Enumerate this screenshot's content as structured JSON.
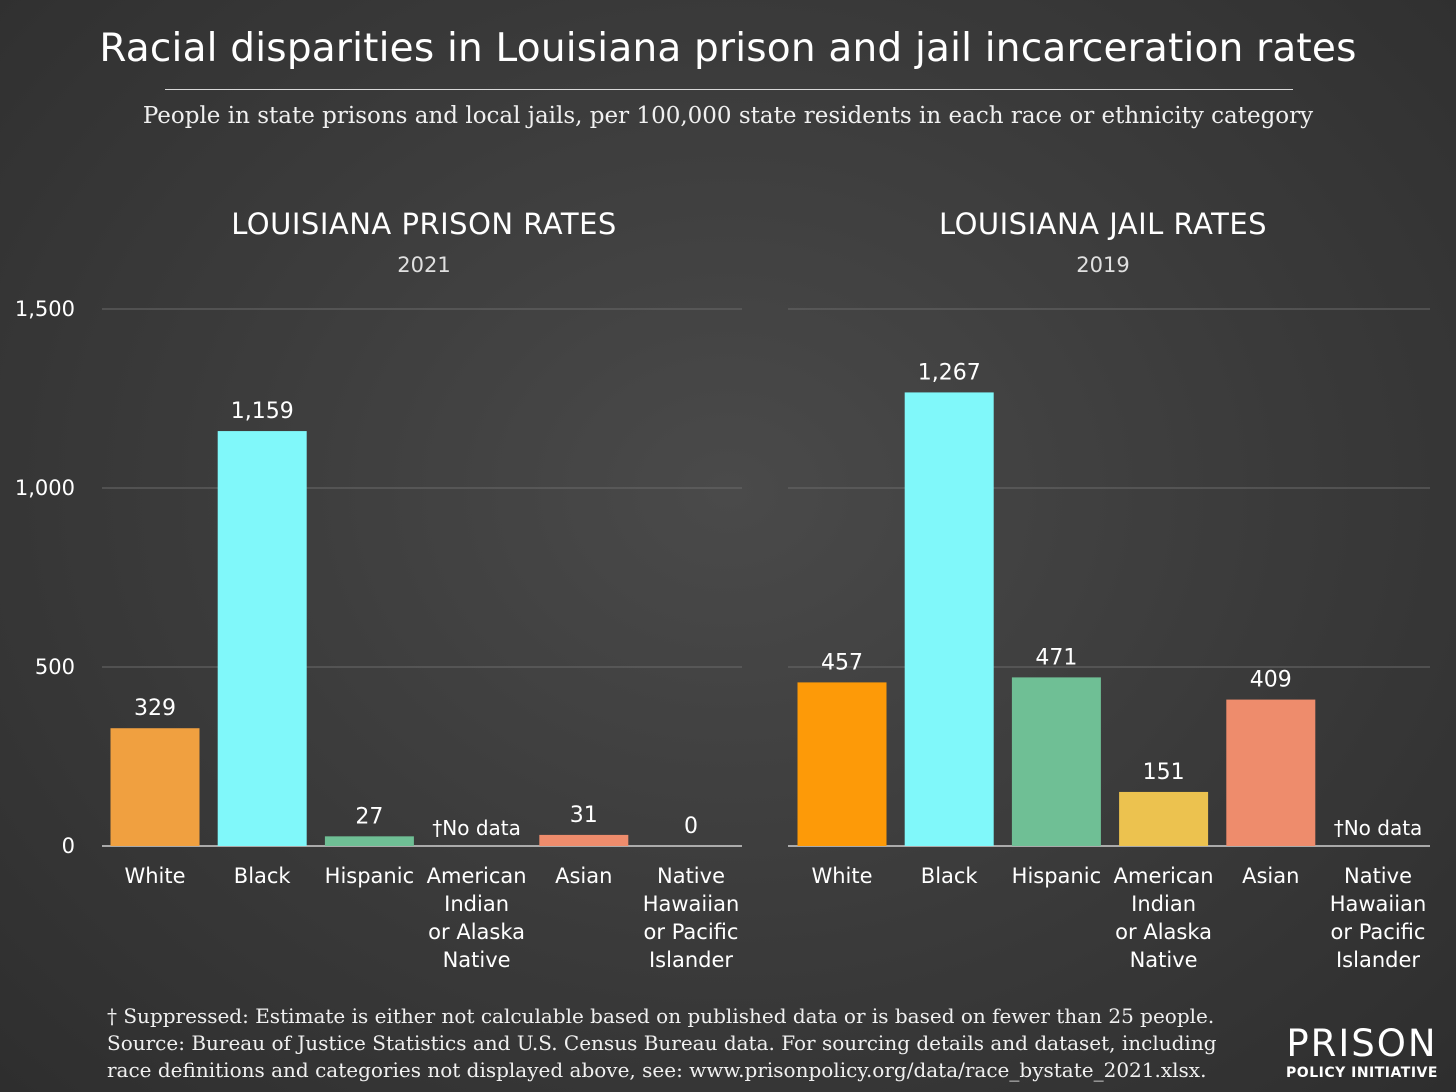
{
  "title": "Racial disparities in Louisiana prison and jail incarceration rates",
  "subtitle": "People in state prisons and local jails, per 100,000 state residents in each race or ethnicity category",
  "footnote": {
    "line1": "† Suppressed: Estimate is either not calculable based on published data or is based on fewer than 25 people.",
    "line2": "Source: Bureau of Justice Statistics and U.S. Census Bureau data. For sourcing details and dataset, including",
    "line3": "race definitions and categories not displayed above, see: www.prisonpolicy.org/data/race_bystate_2021.xlsx."
  },
  "logo": {
    "top": "PRISON",
    "bottom": "POLICY INITIATIVE"
  },
  "colors": {
    "White": "#f0a040",
    "Black": "#80f8fa",
    "Hispanic": "#6fbf95",
    "American Indian or Alaska Native": "#ecc24f",
    "Asian": "#ee8c6c",
    "Native Hawaiian or Pacific Islander": "#c8c8c8",
    "White_jail": "#fd9a08"
  },
  "chart_data": [
    {
      "type": "bar",
      "title": "LOUISIANA PRISON RATES",
      "subtitle": "2021",
      "ylim": [
        0,
        1500
      ],
      "yticks": [
        0,
        500,
        1000,
        1500
      ],
      "ytick_labels": [
        "0",
        "500",
        "1,000",
        "1,500"
      ],
      "categories": [
        "White",
        "Black",
        "Hispanic",
        "American Indian or Alaska Native",
        "Asian",
        "Native Hawaiian or Pacific Islander"
      ],
      "category_lines": [
        [
          "White"
        ],
        [
          "Black"
        ],
        [
          "Hispanic"
        ],
        [
          "American",
          "Indian",
          "or Alaska",
          "Native"
        ],
        [
          "Asian"
        ],
        [
          "Native",
          "Hawaiian",
          "or Pacific",
          "Islander"
        ]
      ],
      "values": [
        329,
        1159,
        27,
        null,
        31,
        0
      ],
      "value_labels": [
        "329",
        "1,159",
        "27",
        "†No data",
        "31",
        "0"
      ]
    },
    {
      "type": "bar",
      "title": "LOUISIANA JAIL RATES",
      "subtitle": "2019",
      "ylim": [
        0,
        1500
      ],
      "yticks": [
        0,
        500,
        1000,
        1500
      ],
      "categories": [
        "White",
        "Black",
        "Hispanic",
        "American Indian or Alaska Native",
        "Asian",
        "Native Hawaiian or Pacific Islander"
      ],
      "category_lines": [
        [
          "White"
        ],
        [
          "Black"
        ],
        [
          "Hispanic"
        ],
        [
          "American",
          "Indian",
          "or Alaska",
          "Native"
        ],
        [
          "Asian"
        ],
        [
          "Native",
          "Hawaiian",
          "or Pacific",
          "Islander"
        ]
      ],
      "values": [
        457,
        1267,
        471,
        151,
        409,
        null
      ],
      "value_labels": [
        "457",
        "1,267",
        "471",
        "151",
        "409",
        "†No data"
      ]
    }
  ]
}
